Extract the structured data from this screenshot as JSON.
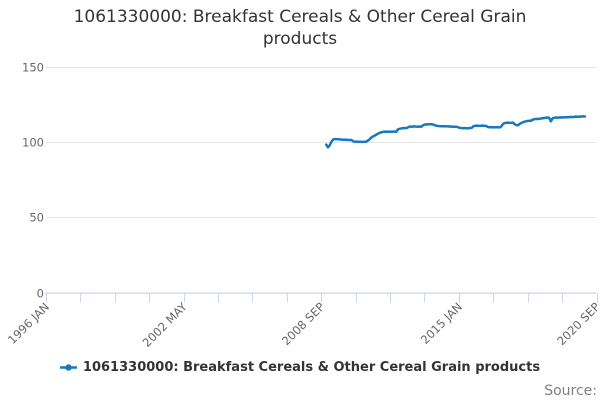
{
  "header": {
    "title": "1061330000: Breakfast Cereals & Other Cereal Grain products"
  },
  "legend": {
    "items": [
      {
        "label": "1061330000: Breakfast Cereals & Other Cereal Grain products",
        "marker": "line-circle-icon",
        "color": "#1878be"
      }
    ]
  },
  "footer": {
    "source_label": "Source:"
  },
  "chart_data": {
    "type": "line",
    "title": "1061330000: Breakfast Cereals & Other Cereal Grain products",
    "ylim": [
      0,
      150
    ],
    "yticks": [
      0,
      50,
      100,
      150
    ],
    "xtick_labels": [
      "1996 JAN",
      "2002 MAY",
      "2008 SEP",
      "2015 JAN",
      "2020 SEP"
    ],
    "x_tick_count": 17,
    "x_label_every": 4,
    "grid": "horizontal-only",
    "legend_position": "bottom",
    "colors": {
      "grid": "#e6e6e6",
      "axis": "#ccd6eb",
      "tick_label": "#666666",
      "title": "#333333",
      "series": "#1878be"
    },
    "series": [
      {
        "name": "1061330000: Breakfast Cereals & Other Cereal Grain products",
        "color": "#1878be",
        "start": "2008 SEP",
        "end": "2020 SEP",
        "frequency": "monthly",
        "x_range_frac": [
          0.509,
          0.979
        ],
        "values": [
          98.4,
          96.6,
          98.0,
          100.5,
          101.9,
          102.1,
          101.9,
          102.0,
          101.8,
          101.6,
          101.7,
          101.5,
          101.6,
          101.4,
          101.5,
          100.6,
          100.3,
          100.4,
          100.2,
          100.3,
          100.1,
          100.3,
          100.2,
          100.9,
          101.8,
          102.9,
          103.8,
          104.4,
          105.1,
          105.8,
          106.3,
          106.6,
          106.9,
          107.0,
          106.8,
          107.1,
          106.9,
          107.0,
          107.1,
          106.9,
          108.6,
          108.9,
          109.2,
          109.4,
          109.3,
          109.5,
          110.2,
          110.4,
          110.3,
          110.5,
          110.4,
          110.2,
          110.4,
          110.3,
          111.3,
          111.7,
          111.9,
          111.8,
          112.0,
          111.8,
          111.6,
          111.0,
          110.8,
          110.7,
          110.6,
          110.7,
          110.5,
          110.6,
          110.4,
          110.5,
          110.3,
          110.2,
          110.3,
          110.1,
          109.6,
          109.4,
          109.3,
          109.4,
          109.2,
          109.3,
          109.4,
          109.5,
          110.6,
          110.9,
          111.0,
          110.8,
          110.9,
          111.0,
          110.9,
          110.8,
          110.1,
          109.9,
          110.0,
          109.8,
          109.9,
          110.0,
          109.8,
          109.9,
          111.5,
          112.6,
          112.9,
          113.0,
          112.8,
          112.9,
          113.0,
          111.9,
          111.2,
          111.5,
          112.4,
          113.0,
          113.5,
          113.8,
          114.1,
          114.3,
          114.2,
          115.0,
          115.3,
          115.5,
          115.4,
          115.6,
          115.8,
          116.0,
          116.2,
          116.4,
          116.3,
          113.9,
          115.9,
          116.3,
          116.4,
          116.3,
          116.5,
          116.4,
          116.6,
          116.5,
          116.7,
          116.6,
          116.8,
          116.7,
          116.9,
          117.0,
          116.9,
          117.1,
          117.0,
          117.2,
          117.1
        ]
      }
    ]
  }
}
